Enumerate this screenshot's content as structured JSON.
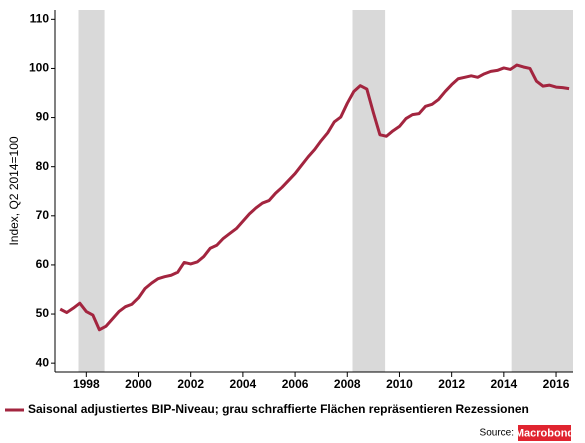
{
  "chart_data": {
    "type": "line",
    "y_axis_label": "Index, Q2 2014=100",
    "x": [
      1997.0,
      1997.25,
      1997.5,
      1997.75,
      1998.0,
      1998.25,
      1998.5,
      1998.75,
      1999.0,
      1999.25,
      1999.5,
      1999.75,
      2000.0,
      2000.25,
      2000.5,
      2000.75,
      2001.0,
      2001.25,
      2001.5,
      2001.75,
      2002.0,
      2002.25,
      2002.5,
      2002.75,
      2003.0,
      2003.25,
      2003.5,
      2003.75,
      2004.0,
      2004.25,
      2004.5,
      2004.75,
      2005.0,
      2005.25,
      2005.5,
      2005.75,
      2006.0,
      2006.25,
      2006.5,
      2006.75,
      2007.0,
      2007.25,
      2007.5,
      2007.75,
      2008.0,
      2008.25,
      2008.5,
      2008.75,
      2009.0,
      2009.25,
      2009.5,
      2009.75,
      2010.0,
      2010.25,
      2010.5,
      2010.75,
      2011.0,
      2011.25,
      2011.5,
      2011.75,
      2012.0,
      2012.25,
      2012.5,
      2012.75,
      2013.0,
      2013.25,
      2013.5,
      2013.75,
      2014.0,
      2014.25,
      2014.5,
      2014.75,
      2015.0,
      2015.25,
      2015.5,
      2015.75,
      2016.0,
      2016.25,
      2016.5
    ],
    "series": [
      {
        "name": "Saisonal adjustiertes BIP-Niveau; grau schraffierte Flächen repräsentieren Rezessionen",
        "color": "#a3253f",
        "values": [
          51.0,
          50.3,
          51.2,
          52.2,
          50.5,
          49.8,
          46.8,
          47.5,
          49.0,
          50.5,
          51.5,
          52.0,
          53.3,
          55.2,
          56.3,
          57.2,
          57.6,
          57.9,
          58.5,
          60.5,
          60.2,
          60.6,
          61.7,
          63.4,
          64.0,
          65.4,
          66.4,
          67.4,
          68.9,
          70.4,
          71.6,
          72.6,
          73.1,
          74.6,
          75.8,
          77.2,
          78.6,
          80.3,
          82.0,
          83.5,
          85.3,
          86.9,
          89.1,
          90.1,
          92.9,
          95.3,
          96.5,
          95.8,
          91.0,
          86.5,
          86.2,
          87.3,
          88.2,
          89.8,
          90.6,
          90.8,
          92.3,
          92.7,
          93.7,
          95.3,
          96.7,
          97.9,
          98.2,
          98.5,
          98.2,
          98.9,
          99.4,
          99.6,
          100.1,
          99.8,
          100.7,
          100.3,
          100.0,
          97.4,
          96.4,
          96.6,
          96.2,
          96.1,
          95.9
        ]
      }
    ],
    "recessions": [
      [
        1997.7,
        1998.7
      ],
      [
        2008.2,
        2009.45
      ],
      [
        2014.3,
        2016.65
      ]
    ],
    "recession_color": "#d9d9d9",
    "xlim": [
      1996.8,
      2016.65
    ],
    "ylim": [
      38.2,
      111.9
    ],
    "xticks": [
      1998,
      2000,
      2002,
      2004,
      2006,
      2008,
      2010,
      2012,
      2014,
      2016
    ],
    "yticks": [
      40,
      50,
      60,
      70,
      80,
      90,
      100,
      110
    ],
    "source_label": "Source:",
    "source_brand": "Macrobond"
  }
}
